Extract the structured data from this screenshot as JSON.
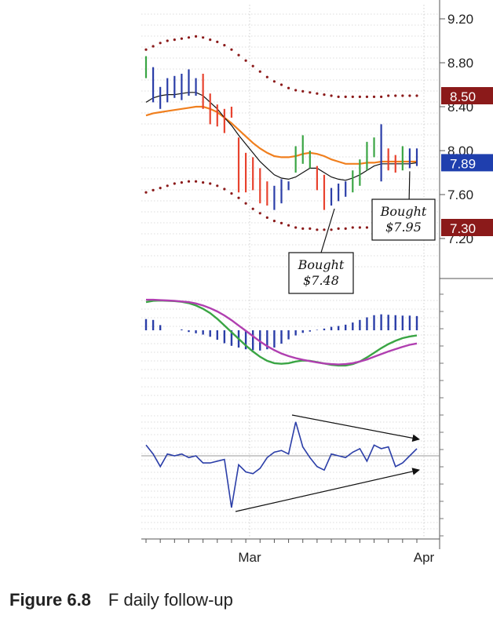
{
  "figure": {
    "label": "Figure 6.8",
    "title": "F daily follow-up"
  },
  "chart_data": [
    {
      "type": "bar",
      "subtype": "ohlc-price-with-envelope",
      "title": "",
      "x_labels": [
        "Mar",
        "Apr"
      ],
      "ylim": [
        7.0,
        9.3
      ],
      "y_ticks": [
        9.2,
        8.8,
        8.4,
        8.0,
        7.6,
        7.2
      ],
      "y_tick_labels": [
        "9.20",
        "8.80",
        "8.40",
        "8.00",
        "7.60",
        "7.20"
      ],
      "price_tags": [
        {
          "value": 8.5,
          "label": "8.50",
          "color": "#8b1a1a"
        },
        {
          "value": 7.89,
          "label": "7.89",
          "color": "#1f3fae"
        },
        {
          "value": 7.3,
          "label": "7.30",
          "color": "#8b1a1a"
        }
      ],
      "bars": [
        {
          "hi": 8.86,
          "lo": 8.66,
          "c": "#3aa544"
        },
        {
          "hi": 8.76,
          "lo": 8.44,
          "c": "#2b3ea8"
        },
        {
          "hi": 8.58,
          "lo": 8.38,
          "c": "#2b3ea8"
        },
        {
          "hi": 8.66,
          "lo": 8.44,
          "c": "#2b3ea8"
        },
        {
          "hi": 8.68,
          "lo": 8.48,
          "c": "#2b3ea8"
        },
        {
          "hi": 8.7,
          "lo": 8.46,
          "c": "#2b3ea8"
        },
        {
          "hi": 8.74,
          "lo": 8.5,
          "c": "#2b3ea8"
        },
        {
          "hi": 8.66,
          "lo": 8.5,
          "c": "#2b3ea8"
        },
        {
          "hi": 8.7,
          "lo": 8.38,
          "c": "#e8432f"
        },
        {
          "hi": 8.52,
          "lo": 8.24,
          "c": "#e8432f"
        },
        {
          "hi": 8.42,
          "lo": 8.22,
          "c": "#e8432f"
        },
        {
          "hi": 8.38,
          "lo": 8.16,
          "c": "#e8432f"
        },
        {
          "hi": 8.4,
          "lo": 8.3,
          "c": "#e8432f"
        },
        {
          "hi": 8.12,
          "lo": 7.62,
          "c": "#e8432f"
        },
        {
          "hi": 7.98,
          "lo": 7.62,
          "c": "#e8432f"
        },
        {
          "hi": 7.94,
          "lo": 7.64,
          "c": "#e8432f"
        },
        {
          "hi": 7.84,
          "lo": 7.52,
          "c": "#e8432f"
        },
        {
          "hi": 7.72,
          "lo": 7.5,
          "c": "#e8432f"
        },
        {
          "hi": 7.68,
          "lo": 7.46,
          "c": "#2b3ea8"
        },
        {
          "hi": 7.74,
          "lo": 7.52,
          "c": "#2b3ea8"
        },
        {
          "hi": 7.72,
          "lo": 7.64,
          "c": "#2b3ea8"
        },
        {
          "hi": 8.04,
          "lo": 7.8,
          "c": "#3aa544"
        },
        {
          "hi": 8.14,
          "lo": 7.88,
          "c": "#3aa544"
        },
        {
          "hi": 8.0,
          "lo": 7.84,
          "c": "#3aa544"
        },
        {
          "hi": 7.86,
          "lo": 7.64,
          "c": "#e8432f"
        },
        {
          "hi": 7.78,
          "lo": 7.46,
          "c": "#e8432f"
        },
        {
          "hi": 7.66,
          "lo": 7.5,
          "c": "#2b3ea8"
        },
        {
          "hi": 7.7,
          "lo": 7.54,
          "c": "#2b3ea8"
        },
        {
          "hi": 7.72,
          "lo": 7.58,
          "c": "#2b3ea8"
        },
        {
          "hi": 7.82,
          "lo": 7.62,
          "c": "#3aa544"
        },
        {
          "hi": 7.92,
          "lo": 7.68,
          "c": "#3aa544"
        },
        {
          "hi": 8.08,
          "lo": 7.82,
          "c": "#3aa544"
        },
        {
          "hi": 8.12,
          "lo": 7.94,
          "c": "#3aa544"
        },
        {
          "hi": 8.24,
          "lo": 7.72,
          "c": "#2b3ea8"
        },
        {
          "hi": 8.02,
          "lo": 7.82,
          "c": "#e8432f"
        },
        {
          "hi": 7.96,
          "lo": 7.8,
          "c": "#e8432f"
        },
        {
          "hi": 8.04,
          "lo": 7.82,
          "c": "#3aa544"
        },
        {
          "hi": 8.02,
          "lo": 7.84,
          "c": "#2b3ea8"
        },
        {
          "hi": 8.02,
          "lo": 7.86,
          "c": "#2b3ea8"
        }
      ],
      "black_ma": [
        8.44,
        8.48,
        8.5,
        8.51,
        8.51,
        8.52,
        8.53,
        8.53,
        8.5,
        8.44,
        8.38,
        8.3,
        8.23,
        8.14,
        8.06,
        7.98,
        7.9,
        7.84,
        7.78,
        7.75,
        7.74,
        7.76,
        7.8,
        7.84,
        7.84,
        7.8,
        7.76,
        7.74,
        7.73,
        7.75,
        7.78,
        7.82,
        7.86,
        7.88,
        7.88,
        7.88,
        7.88,
        7.88,
        7.89
      ],
      "orange_ma": [
        8.32,
        8.34,
        8.35,
        8.36,
        8.37,
        8.38,
        8.39,
        8.4,
        8.4,
        8.38,
        8.35,
        8.3,
        8.25,
        8.19,
        8.13,
        8.07,
        8.02,
        7.98,
        7.95,
        7.94,
        7.94,
        7.95,
        7.97,
        7.98,
        7.97,
        7.95,
        7.92,
        7.9,
        7.88,
        7.88,
        7.88,
        7.89,
        7.89,
        7.9,
        7.9,
        7.9,
        7.9,
        7.9,
        7.9
      ],
      "upper_envelope": [
        8.92,
        8.95,
        8.98,
        9.0,
        9.01,
        9.02,
        9.03,
        9.04,
        9.03,
        9.01,
        8.99,
        8.96,
        8.92,
        8.87,
        8.82,
        8.77,
        8.72,
        8.67,
        8.63,
        8.6,
        8.57,
        8.55,
        8.54,
        8.53,
        8.52,
        8.51,
        8.5,
        8.49,
        8.49,
        8.49,
        8.49,
        8.49,
        8.49,
        8.49,
        8.5,
        8.5,
        8.5,
        8.5,
        8.5
      ],
      "lower_envelope": [
        7.62,
        7.64,
        7.66,
        7.68,
        7.7,
        7.71,
        7.72,
        7.72,
        7.71,
        7.7,
        7.68,
        7.65,
        7.61,
        7.57,
        7.52,
        7.47,
        7.43,
        7.39,
        7.36,
        7.34,
        7.32,
        7.3,
        7.29,
        7.29,
        7.28,
        7.28,
        7.28,
        7.29,
        7.29,
        7.3,
        7.3,
        7.3,
        7.31,
        7.31,
        7.3,
        7.3,
        7.3,
        7.3,
        7.3
      ],
      "annotations": [
        {
          "text_lines": [
            "Bought",
            "$7.48"
          ],
          "bar_index": 26
        },
        {
          "text_lines": [
            "Bought",
            "$7.95"
          ],
          "bar_index": 37
        }
      ]
    },
    {
      "type": "line",
      "subtype": "macd",
      "title": "",
      "series": [
        {
          "color": "#3aa544",
          "values": [
            -0.12,
            -0.08,
            -0.07,
            -0.08,
            -0.09,
            -0.11,
            -0.15,
            -0.22,
            -0.32,
            -0.45,
            -0.62,
            -0.82,
            -1.02,
            -1.22,
            -1.42,
            -1.6,
            -1.76,
            -1.88,
            -1.95,
            -1.97,
            -1.95,
            -1.9,
            -1.87,
            -1.88,
            -1.92,
            -1.96,
            -2.0,
            -2.02,
            -2.02,
            -1.98,
            -1.9,
            -1.78,
            -1.64,
            -1.5,
            -1.38,
            -1.28,
            -1.2,
            -1.15,
            -1.12
          ]
        },
        {
          "color": "#b03fb0",
          "values": [
            -0.05,
            -0.05,
            -0.06,
            -0.07,
            -0.08,
            -0.1,
            -0.12,
            -0.16,
            -0.22,
            -0.3,
            -0.4,
            -0.52,
            -0.66,
            -0.82,
            -0.98,
            -1.14,
            -1.3,
            -1.44,
            -1.56,
            -1.66,
            -1.74,
            -1.8,
            -1.85,
            -1.89,
            -1.93,
            -1.96,
            -1.98,
            -1.99,
            -1.98,
            -1.95,
            -1.9,
            -1.84,
            -1.76,
            -1.68,
            -1.6,
            -1.53,
            -1.46,
            -1.4,
            -1.36
          ]
        }
      ],
      "histogram": [
        0.26,
        0.24,
        0.12,
        0,
        0,
        0.02,
        -0.04,
        -0.07,
        -0.1,
        -0.15,
        -0.22,
        -0.3,
        -0.36,
        -0.4,
        -0.44,
        -0.46,
        -0.47,
        -0.44,
        -0.4,
        -0.31,
        -0.21,
        -0.12,
        -0.06,
        -0.03,
        0.01,
        0.04,
        0.08,
        0.1,
        0.13,
        0.18,
        0.24,
        0.3,
        0.35,
        0.37,
        0.36,
        0.35,
        0.34,
        0.34,
        0.33
      ]
    },
    {
      "type": "line",
      "subtype": "force-index",
      "title": "",
      "series": [
        {
          "color": "#2b3ea8",
          "values": [
            0.6,
            0.1,
            -0.6,
            0.1,
            0.0,
            0.1,
            -0.1,
            0.0,
            -0.4,
            -0.4,
            -0.3,
            -0.2,
            -2.9,
            -0.5,
            -0.9,
            -1.0,
            -0.7,
            -0.1,
            0.2,
            0.3,
            0.1,
            1.9,
            0.5,
            -0.1,
            -0.6,
            -0.8,
            0.1,
            0.0,
            -0.1,
            0.2,
            0.4,
            -0.3,
            0.6,
            0.4,
            0.5,
            -0.6,
            -0.4,
            0.0,
            0.4
          ]
        }
      ],
      "divergence_arrows": 2
    }
  ]
}
